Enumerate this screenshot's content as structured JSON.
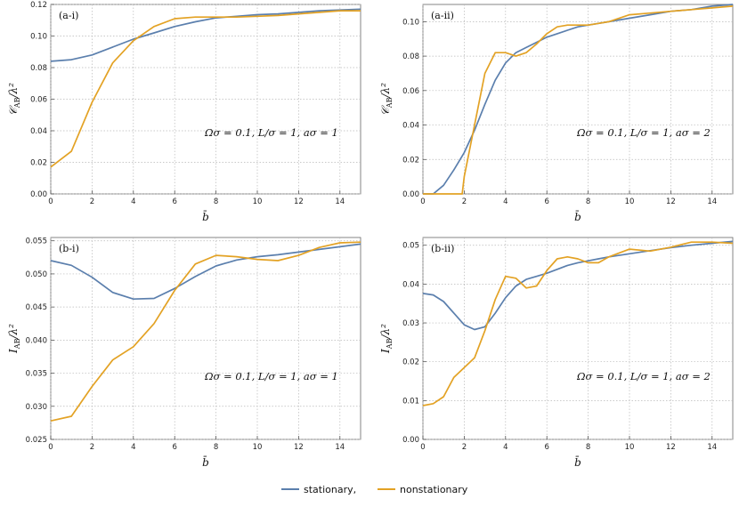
{
  "colors": {
    "stationary": "#5b7fad",
    "nonstationary": "#e3a224"
  },
  "legend": {
    "entries": [
      "stationary,",
      "nonstationary"
    ],
    "placement": "bottom-center"
  },
  "chart_data": [
    {
      "type": "line",
      "panel_label": "(a-i)",
      "xlabel": "b̄",
      "ylabel": "𝒞AB/λ²",
      "annotation": "Ωσ = 0.1, L/σ = 1, aσ = 1",
      "xlim": [
        0,
        15
      ],
      "ylim": [
        0,
        0.12
      ],
      "grid": true,
      "xticks": [
        "0",
        "2",
        "4",
        "6",
        "8",
        "10",
        "12",
        "14"
      ],
      "yticks": [
        "0.00",
        "0.02",
        "0.04",
        "0.06",
        "0.08",
        "0.10",
        "0.12"
      ],
      "x": [
        0,
        1,
        2,
        3,
        4,
        5,
        6,
        7,
        8,
        9,
        10,
        11,
        12,
        13,
        14,
        15
      ],
      "series": [
        {
          "name": "stationary,",
          "values": [
            0.084,
            0.085,
            0.088,
            0.093,
            0.098,
            0.102,
            0.106,
            0.109,
            0.1115,
            0.1125,
            0.1135,
            0.114,
            0.115,
            0.116,
            0.1165,
            0.117
          ]
        },
        {
          "name": "nonstationary",
          "values": [
            0.017,
            0.027,
            0.058,
            0.083,
            0.097,
            0.106,
            0.111,
            0.112,
            0.112,
            0.112,
            0.1125,
            0.113,
            0.114,
            0.115,
            0.116,
            0.116
          ]
        }
      ]
    },
    {
      "type": "line",
      "panel_label": "(a-ii)",
      "xlabel": "b̄",
      "ylabel": "𝒞AB/λ²",
      "annotation": "Ωσ = 0.1, L/σ = 1, aσ = 2",
      "xlim": [
        0,
        15
      ],
      "ylim": [
        0,
        0.11
      ],
      "grid": true,
      "xticks": [
        "0",
        "2",
        "4",
        "6",
        "8",
        "10",
        "12",
        "14"
      ],
      "yticks": [
        "0.00",
        "0.02",
        "0.04",
        "0.06",
        "0.08",
        "0.10"
      ],
      "x": [
        0,
        0.5,
        1,
        1.5,
        1.9,
        2,
        2.5,
        3,
        3.5,
        4,
        4.5,
        5,
        5.5,
        6,
        6.5,
        7,
        7.5,
        8,
        8.5,
        9,
        10,
        11,
        12,
        13,
        14,
        15
      ],
      "series": [
        {
          "name": "stationary,",
          "values": [
            0,
            0,
            0.005,
            0.014,
            0.022,
            0.024,
            0.037,
            0.052,
            0.066,
            0.076,
            0.082,
            0.085,
            0.088,
            0.091,
            0.093,
            0.095,
            0.097,
            0.098,
            0.099,
            0.1,
            0.102,
            0.104,
            0.106,
            0.107,
            0.109,
            0.11
          ]
        },
        {
          "name": "nonstationary",
          "values": [
            0,
            0,
            0,
            0,
            0,
            0.01,
            0.04,
            0.07,
            0.082,
            0.082,
            0.08,
            0.082,
            0.087,
            0.093,
            0.097,
            0.098,
            0.098,
            0.098,
            0.099,
            0.1,
            0.104,
            0.105,
            0.106,
            0.107,
            0.108,
            0.109
          ]
        }
      ]
    },
    {
      "type": "line",
      "panel_label": "(b-i)",
      "xlabel": "b̄",
      "ylabel": "IAB/λ²",
      "annotation": "Ωσ = 0.1, L/σ = 1, aσ = 1",
      "xlim": [
        0,
        15
      ],
      "ylim": [
        0.025,
        0.0555
      ],
      "grid": true,
      "xticks": [
        "0",
        "2",
        "4",
        "6",
        "8",
        "10",
        "12",
        "14"
      ],
      "yticks": [
        "0.025",
        "0.030",
        "0.035",
        "0.040",
        "0.045",
        "0.050",
        "0.055"
      ],
      "x": [
        0,
        1,
        2,
        3,
        4,
        5,
        6,
        7,
        8,
        9,
        10,
        11,
        12,
        13,
        14,
        15
      ],
      "series": [
        {
          "name": "stationary,",
          "values": [
            0.052,
            0.0513,
            0.0495,
            0.0472,
            0.0462,
            0.0463,
            0.0478,
            0.0496,
            0.0512,
            0.0521,
            0.0526,
            0.0529,
            0.0533,
            0.0537,
            0.0541,
            0.0545
          ]
        },
        {
          "name": "nonstationary",
          "values": [
            0.0278,
            0.0285,
            0.033,
            0.037,
            0.039,
            0.0425,
            0.0475,
            0.0515,
            0.0528,
            0.0526,
            0.0522,
            0.052,
            0.0528,
            0.054,
            0.0547,
            0.0548
          ]
        }
      ]
    },
    {
      "type": "line",
      "panel_label": "(b-ii)",
      "xlabel": "b̄",
      "ylabel": "IAB/λ²",
      "annotation": "Ωσ = 0.1, L/σ = 1, aσ = 2",
      "xlim": [
        0,
        15
      ],
      "ylim": [
        0,
        0.052
      ],
      "grid": true,
      "xticks": [
        "0",
        "2",
        "4",
        "6",
        "8",
        "10",
        "12",
        "14"
      ],
      "yticks": [
        "0.00",
        "0.01",
        "0.02",
        "0.03",
        "0.04",
        "0.05"
      ],
      "x": [
        0,
        0.5,
        1,
        1.5,
        2,
        2.5,
        3,
        3.5,
        4,
        4.5,
        5,
        5.5,
        6,
        6.5,
        7,
        7.5,
        8,
        8.5,
        9,
        10,
        11,
        12,
        13,
        14,
        15
      ],
      "series": [
        {
          "name": "stationary,",
          "values": [
            0.0376,
            0.0372,
            0.0355,
            0.0325,
            0.0295,
            0.0283,
            0.029,
            0.0325,
            0.0365,
            0.0395,
            0.0412,
            0.042,
            0.0428,
            0.0438,
            0.0448,
            0.0455,
            0.046,
            0.0465,
            0.047,
            0.0478,
            0.0486,
            0.0494,
            0.05,
            0.0505,
            0.051
          ]
        },
        {
          "name": "nonstationary",
          "values": [
            0.0087,
            0.0092,
            0.011,
            0.016,
            0.0185,
            0.021,
            0.028,
            0.036,
            0.042,
            0.0415,
            0.039,
            0.0395,
            0.0435,
            0.0465,
            0.047,
            0.0465,
            0.0455,
            0.0455,
            0.047,
            0.049,
            0.0485,
            0.0495,
            0.0508,
            0.0508,
            0.0505
          ]
        }
      ]
    }
  ]
}
